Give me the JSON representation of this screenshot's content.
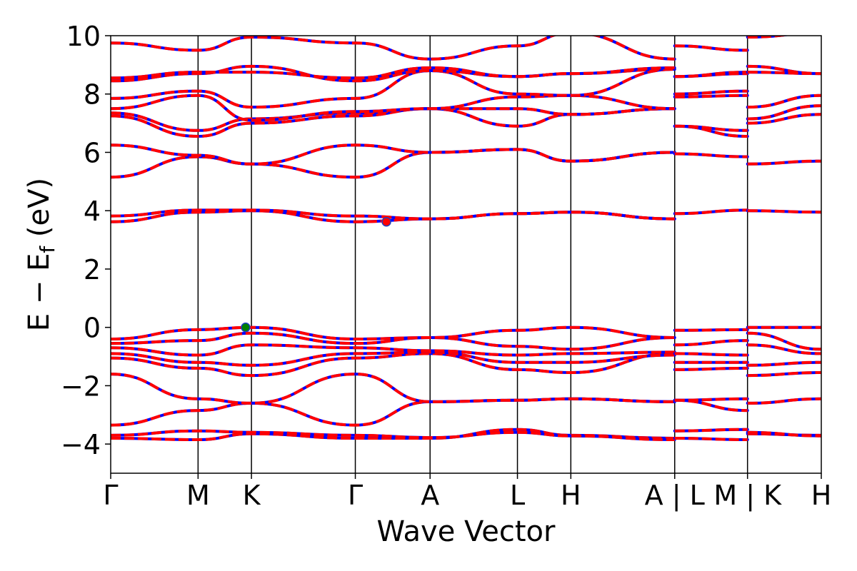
{
  "chart_data": {
    "type": "line",
    "title": "",
    "xlabel": "Wave Vector",
    "ylabel": "E − E",
    "ylabel_sub": "f",
    "ylabel_unit": " (eV)",
    "ylim": [
      -5,
      10
    ],
    "yticks": [
      -4,
      -2,
      0,
      2,
      4,
      6,
      8,
      10
    ],
    "ytick_labels": [
      "−4",
      "−2",
      "0",
      "2",
      "4",
      "6",
      "8",
      "10"
    ],
    "xlim": [
      0,
      7.32
    ],
    "xticks": [
      {
        "x": 0.0,
        "label": "Γ"
      },
      {
        "x": 0.9,
        "label": "M"
      },
      {
        "x": 1.45,
        "label": "K"
      },
      {
        "x": 2.52,
        "label": "Γ"
      },
      {
        "x": 3.29,
        "label": "A"
      },
      {
        "x": 4.19,
        "label": "L"
      },
      {
        "x": 4.74,
        "label": "H"
      },
      {
        "x": 5.81,
        "label": "A | L"
      },
      {
        "x": 6.56,
        "label": "M | K"
      },
      {
        "x": 7.32,
        "label": "H"
      }
    ],
    "vlines": [
      0.9,
      1.45,
      2.52,
      3.29,
      4.19,
      4.74,
      5.81,
      6.56
    ],
    "series_colors": {
      "band_a": "#0000ff",
      "band_b": "#ff0000",
      "vbm_marker": "#008000",
      "cbm_marker": "#ff0000"
    },
    "markers": [
      {
        "label": "VBM",
        "x": 1.39,
        "y": 0.0,
        "color": "#008000"
      },
      {
        "label": "CBM",
        "x": 2.84,
        "y": 3.62,
        "color": "#ff0000"
      }
    ],
    "bands": [
      {
        "x": [
          0,
          0.9,
          1.45,
          2.52,
          3.29,
          4.19,
          4.74,
          5.81
        ],
        "y": [
          -3.8,
          -3.85,
          -3.65,
          -3.8,
          -3.8,
          -3.5,
          -3.7,
          -3.8
        ]
      },
      {
        "x": [
          0,
          0.9,
          1.45,
          2.52,
          3.29,
          4.19,
          4.74,
          5.81
        ],
        "y": [
          -3.7,
          -3.55,
          -3.6,
          -3.7,
          -3.78,
          -3.6,
          -3.72,
          -3.85
        ]
      },
      {
        "x": [
          0,
          0.9,
          1.45,
          2.52,
          3.29,
          4.19,
          4.74,
          5.81
        ],
        "y": [
          -3.35,
          -2.85,
          -2.6,
          -3.35,
          -2.55,
          -2.5,
          -2.45,
          -2.55
        ]
      },
      {
        "x": [
          0,
          0.9,
          1.45,
          2.52,
          3.29,
          4.19,
          4.74,
          5.81
        ],
        "y": [
          -1.6,
          -2.45,
          -2.6,
          -1.6,
          -2.55,
          -2.5,
          -2.45,
          -2.55
        ]
      },
      {
        "x": [
          0,
          0.9,
          1.45,
          2.52,
          3.29,
          4.19,
          4.74,
          5.81
        ],
        "y": [
          -1.05,
          -1.4,
          -1.65,
          -1.05,
          -0.9,
          -1.45,
          -1.55,
          -0.9
        ]
      },
      {
        "x": [
          0,
          0.9,
          1.45,
          2.52,
          3.29,
          4.19,
          4.74,
          5.81
        ],
        "y": [
          -0.9,
          -1.2,
          -1.3,
          -0.9,
          -0.85,
          -1.2,
          -1.2,
          -0.95
        ]
      },
      {
        "x": [
          0,
          0.9,
          1.45,
          2.52,
          3.29,
          4.19,
          4.74,
          5.81
        ],
        "y": [
          -0.7,
          -0.95,
          -0.6,
          -0.7,
          -0.8,
          -0.95,
          -0.9,
          -0.85
        ]
      },
      {
        "x": [
          0,
          0.9,
          1.45,
          2.52,
          3.29,
          4.19,
          4.74,
          5.81
        ],
        "y": [
          -0.55,
          -0.45,
          -0.2,
          -0.55,
          -0.35,
          -0.65,
          -0.75,
          -0.35
        ]
      },
      {
        "x": [
          0,
          0.9,
          1.45,
          2.52,
          3.29,
          4.19,
          4.74,
          5.81
        ],
        "y": [
          -0.4,
          -0.08,
          0.0,
          -0.4,
          -0.35,
          -0.1,
          0.0,
          -0.35
        ]
      },
      {
        "x": [
          0,
          0.9,
          1.45,
          2.52,
          3.29,
          4.19,
          4.74,
          5.81
        ],
        "y": [
          3.62,
          3.95,
          4.0,
          3.62,
          3.72,
          3.9,
          3.95,
          3.72
        ]
      },
      {
        "x": [
          0,
          0.9,
          1.45,
          2.52,
          3.29,
          4.19,
          4.74,
          5.81
        ],
        "y": [
          3.82,
          4.02,
          4.02,
          3.82,
          3.72,
          3.9,
          3.95,
          3.72
        ]
      },
      {
        "x": [
          0,
          0.9,
          1.45,
          2.52,
          3.29,
          4.19,
          4.74,
          5.81
        ],
        "y": [
          5.15,
          5.85,
          5.6,
          5.15,
          6.0,
          6.1,
          5.7,
          6.0
        ]
      },
      {
        "x": [
          0,
          0.9,
          1.45,
          2.52,
          3.29,
          4.19,
          4.74,
          5.81
        ],
        "y": [
          6.25,
          5.9,
          5.6,
          6.25,
          6.0,
          6.1,
          5.7,
          6.0
        ]
      },
      {
        "x": [
          0,
          0.9,
          1.45,
          2.52,
          3.29,
          4.19,
          4.74,
          5.81
        ],
        "y": [
          7.25,
          6.55,
          7.0,
          7.25,
          7.5,
          6.9,
          7.3,
          7.5
        ]
      },
      {
        "x": [
          0,
          0.9,
          1.45,
          2.52,
          3.29,
          4.19,
          4.74,
          5.81
        ],
        "y": [
          7.35,
          6.75,
          7.15,
          7.35,
          7.5,
          7.5,
          7.3,
          7.5
        ]
      },
      {
        "x": [
          0,
          0.9,
          1.45,
          2.52,
          3.29,
          4.19,
          4.74,
          5.81
        ],
        "y": [
          7.5,
          7.95,
          7.1,
          7.4,
          7.5,
          7.9,
          7.95,
          7.5
        ]
      },
      {
        "x": [
          0,
          0.9,
          1.45,
          2.52,
          3.29,
          4.19,
          4.74,
          5.81
        ],
        "y": [
          7.85,
          8.1,
          7.55,
          7.85,
          8.8,
          8.0,
          7.95,
          8.85
        ]
      },
      {
        "x": [
          0,
          0.9,
          1.45,
          2.52,
          3.29,
          4.19,
          4.74,
          5.81
        ],
        "y": [
          8.45,
          8.7,
          8.95,
          8.45,
          8.8,
          8.6,
          8.7,
          8.85
        ]
      },
      {
        "x": [
          0,
          0.9,
          1.45,
          2.52,
          3.29,
          4.19,
          4.74,
          5.81
        ],
        "y": [
          8.55,
          8.75,
          8.75,
          8.55,
          8.9,
          8.6,
          8.7,
          8.9
        ]
      },
      {
        "x": [
          0,
          0.9,
          1.45,
          2.52,
          3.29,
          4.19,
          4.74,
          5.81
        ],
        "y": [
          9.75,
          9.5,
          9.95,
          9.75,
          9.2,
          9.65,
          10.1,
          9.2
        ]
      },
      {
        "x": [
          5.81,
          6.56
        ],
        "y": [
          -3.8,
          -3.85
        ]
      },
      {
        "x": [
          5.81,
          6.56
        ],
        "y": [
          -3.55,
          -3.5
        ]
      },
      {
        "x": [
          5.81,
          6.56
        ],
        "y": [
          -2.5,
          -2.85
        ]
      },
      {
        "x": [
          5.81,
          6.56
        ],
        "y": [
          -2.5,
          -2.45
        ]
      },
      {
        "x": [
          5.81,
          6.56
        ],
        "y": [
          -1.45,
          -1.4
        ]
      },
      {
        "x": [
          5.81,
          6.56
        ],
        "y": [
          -1.2,
          -1.2
        ]
      },
      {
        "x": [
          5.81,
          6.56
        ],
        "y": [
          -0.9,
          -0.95
        ]
      },
      {
        "x": [
          5.81,
          6.56
        ],
        "y": [
          -0.6,
          -0.45
        ]
      },
      {
        "x": [
          5.81,
          6.56
        ],
        "y": [
          -0.1,
          -0.08
        ]
      },
      {
        "x": [
          5.81,
          6.56
        ],
        "y": [
          3.9,
          4.02
        ]
      },
      {
        "x": [
          5.81,
          6.56
        ],
        "y": [
          5.95,
          5.85
        ]
      },
      {
        "x": [
          5.81,
          6.56
        ],
        "y": [
          6.9,
          6.55
        ]
      },
      {
        "x": [
          5.81,
          6.56
        ],
        "y": [
          6.9,
          6.75
        ]
      },
      {
        "x": [
          5.81,
          6.56
        ],
        "y": [
          7.9,
          7.95
        ]
      },
      {
        "x": [
          5.81,
          6.56
        ],
        "y": [
          8.0,
          8.1
        ]
      },
      {
        "x": [
          5.81,
          6.56
        ],
        "y": [
          8.6,
          8.7
        ]
      },
      {
        "x": [
          5.81,
          6.56
        ],
        "y": [
          8.6,
          8.75
        ]
      },
      {
        "x": [
          5.81,
          6.56
        ],
        "y": [
          9.65,
          9.5
        ]
      },
      {
        "x": [
          6.56,
          7.32
        ],
        "y": [
          -3.65,
          -3.7
        ]
      },
      {
        "x": [
          6.56,
          7.32
        ],
        "y": [
          -3.6,
          -3.72
        ]
      },
      {
        "x": [
          6.56,
          7.32
        ],
        "y": [
          -2.6,
          -2.45
        ]
      },
      {
        "x": [
          6.56,
          7.32
        ],
        "y": [
          -1.65,
          -1.55
        ]
      },
      {
        "x": [
          6.56,
          7.32
        ],
        "y": [
          -1.3,
          -1.2
        ]
      },
      {
        "x": [
          6.56,
          7.32
        ],
        "y": [
          -0.6,
          -0.9
        ]
      },
      {
        "x": [
          6.56,
          7.32
        ],
        "y": [
          -0.2,
          -0.75
        ]
      },
      {
        "x": [
          6.56,
          7.32
        ],
        "y": [
          0.0,
          0.0
        ]
      },
      {
        "x": [
          6.56,
          7.32
        ],
        "y": [
          4.0,
          3.95
        ]
      },
      {
        "x": [
          6.56,
          7.32
        ],
        "y": [
          5.6,
          5.7
        ]
      },
      {
        "x": [
          6.56,
          7.32
        ],
        "y": [
          7.0,
          7.3
        ]
      },
      {
        "x": [
          6.56,
          7.32
        ],
        "y": [
          7.15,
          7.6
        ]
      },
      {
        "x": [
          6.56,
          7.32
        ],
        "y": [
          7.55,
          7.95
        ]
      },
      {
        "x": [
          6.56,
          7.32
        ],
        "y": [
          8.95,
          8.7
        ]
      },
      {
        "x": [
          6.56,
          7.32
        ],
        "y": [
          8.75,
          8.7
        ]
      },
      {
        "x": [
          6.56,
          7.32
        ],
        "y": [
          9.95,
          10.1
        ]
      }
    ]
  }
}
